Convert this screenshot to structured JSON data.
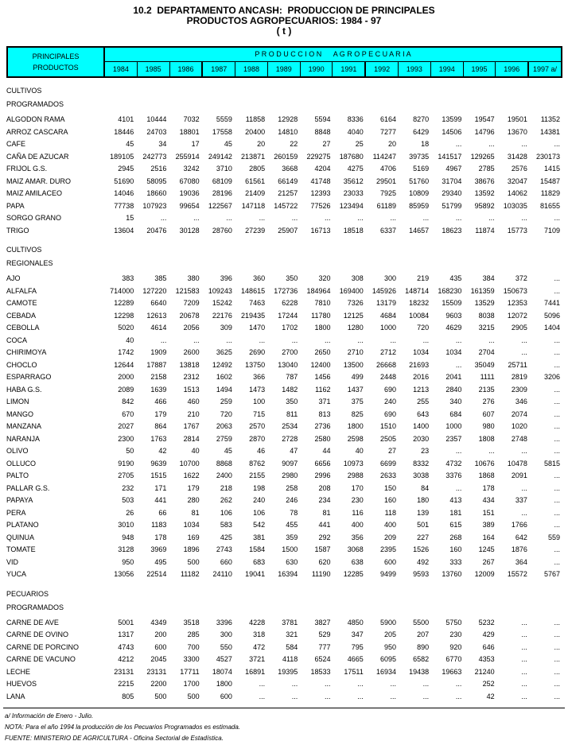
{
  "title": {
    "line1": "10.2  DEPARTAMENTO ANCASH:  PRODUCCION DE PRINCIPALES",
    "line2": "PRODUCTOS AGROPECUARIOS: 1984 - 97",
    "line3": "( t )"
  },
  "colors": {
    "header_bg": "#00FFFF",
    "border": "#000000"
  },
  "header": {
    "col1_line1": "PRINCIPALES",
    "col1_line2": "PRODUCTOS",
    "group_title": "P R O D U C C I O N      A G R O P E C U A R I A",
    "years": [
      "1984",
      "1985",
      "1986",
      "1987",
      "1988",
      "1989",
      "1990",
      "1991",
      "1992",
      "1993",
      "1994",
      "1995",
      "1996",
      "1997 a/"
    ]
  },
  "sections": [
    {
      "heading": [
        "CULTIVOS",
        "PROGRAMADOS"
      ],
      "rows": [
        {
          "label": "ALGODON RAMA",
          "values": [
            "4101",
            "10444",
            "7032",
            "5559",
            "11858",
            "12928",
            "5594",
            "8336",
            "6164",
            "8270",
            "13599",
            "19547",
            "19501",
            "11352"
          ]
        },
        {
          "label": "ARROZ CASCARA",
          "values": [
            "18446",
            "24703",
            "18801",
            "17558",
            "20400",
            "14810",
            "8848",
            "4040",
            "7277",
            "6429",
            "14506",
            "14796",
            "13670",
            "14381"
          ]
        },
        {
          "label": "CAFE",
          "values": [
            "45",
            "34",
            "17",
            "45",
            "20",
            "22",
            "27",
            "25",
            "20",
            "18",
            "...",
            "...",
            "...",
            "..."
          ]
        },
        {
          "label": "CAÑA DE AZUCAR",
          "values": [
            "189105",
            "242773",
            "255914",
            "249142",
            "213871",
            "260159",
            "229275",
            "187680",
            "114247",
            "39735",
            "141517",
            "129265",
            "31428",
            "230173"
          ]
        },
        {
          "label": "FRIJOL G.S.",
          "values": [
            "2945",
            "2516",
            "3242",
            "3710",
            "2805",
            "3668",
            "4204",
            "4275",
            "4706",
            "5169",
            "4967",
            "2785",
            "2576",
            "1415"
          ]
        },
        {
          "label": "MAIZ AMAR. DURO",
          "values": [
            "51690",
            "58095",
            "67080",
            "68109",
            "61561",
            "66149",
            "41748",
            "35612",
            "29501",
            "51760",
            "31704",
            "38676",
            "32047",
            "15487"
          ]
        },
        {
          "label": "MAIZ AMILACEO",
          "values": [
            "14046",
            "18660",
            "19036",
            "28196",
            "21409",
            "21257",
            "12393",
            "23033",
            "7925",
            "10809",
            "29340",
            "13592",
            "14062",
            "11829"
          ]
        },
        {
          "label": "PAPA",
          "values": [
            "77738",
            "107923",
            "99654",
            "122567",
            "147118",
            "145722",
            "77526",
            "123494",
            "61189",
            "85959",
            "51799",
            "95892",
            "103035",
            "81655"
          ]
        },
        {
          "label": "SORGO GRANO",
          "values": [
            "15",
            "...",
            "...",
            "...",
            "...",
            "...",
            "...",
            "...",
            "...",
            "...",
            "...",
            "...",
            "...",
            "..."
          ]
        },
        {
          "label": "TRIGO",
          "values": [
            "13604",
            "20476",
            "30128",
            "28760",
            "27239",
            "25907",
            "16713",
            "18518",
            "6337",
            "14657",
            "18623",
            "11874",
            "15773",
            "7109"
          ]
        }
      ]
    },
    {
      "heading": [
        "CULTIVOS",
        "REGIONALES"
      ],
      "rows": [
        {
          "label": "AJO",
          "values": [
            "383",
            "385",
            "380",
            "396",
            "360",
            "350",
            "320",
            "308",
            "300",
            "219",
            "435",
            "384",
            "372",
            "..."
          ]
        },
        {
          "label": "ALFALFA",
          "values": [
            "714000",
            "127220",
            "121583",
            "109243",
            "148615",
            "172736",
            "184964",
            "169400",
            "145926",
            "148714",
            "168230",
            "161359",
            "150673",
            "..."
          ]
        },
        {
          "label": "CAMOTE",
          "values": [
            "12289",
            "6640",
            "7209",
            "15242",
            "7463",
            "6228",
            "7810",
            "7326",
            "13179",
            "18232",
            "15509",
            "13529",
            "12353",
            "7441"
          ]
        },
        {
          "label": "CEBADA",
          "values": [
            "12298",
            "12613",
            "20678",
            "22176",
            "219435",
            "17244",
            "11780",
            "12125",
            "4684",
            "10084",
            "9603",
            "8038",
            "12072",
            "5096"
          ]
        },
        {
          "label": "CEBOLLA",
          "values": [
            "5020",
            "4614",
            "2056",
            "309",
            "1470",
            "1702",
            "1800",
            "1280",
            "1000",
            "720",
            "4629",
            "3215",
            "2905",
            "1404"
          ]
        },
        {
          "label": "COCA",
          "values": [
            "40",
            "...",
            "...",
            "...",
            "...",
            "...",
            "...",
            "...",
            "...",
            "...",
            "...",
            "...",
            "...",
            "..."
          ]
        },
        {
          "label": "CHIRIMOYA",
          "values": [
            "1742",
            "1909",
            "2600",
            "3625",
            "2690",
            "2700",
            "2650",
            "2710",
            "2712",
            "1034",
            "1034",
            "2704",
            "...",
            "..."
          ]
        },
        {
          "label": "CHOCLO",
          "values": [
            "12644",
            "17887",
            "13818",
            "12492",
            "13750",
            "13040",
            "12400",
            "13500",
            "26668",
            "21693",
            "...",
            "35049",
            "25711",
            "..."
          ]
        },
        {
          "label": "ESPARRAGO",
          "values": [
            "2000",
            "2158",
            "2312",
            "1602",
            "366",
            "787",
            "1456",
            "499",
            "2448",
            "2016",
            "2041",
            "1111",
            "2819",
            "3206"
          ]
        },
        {
          "label": "HABA G.S.",
          "values": [
            "2089",
            "1639",
            "1513",
            "1494",
            "1473",
            "1482",
            "1162",
            "1437",
            "690",
            "1213",
            "2840",
            "2135",
            "2309",
            "..."
          ]
        },
        {
          "label": "LIMON",
          "values": [
            "842",
            "466",
            "460",
            "259",
            "100",
            "350",
            "371",
            "375",
            "240",
            "255",
            "340",
            "276",
            "346",
            "..."
          ]
        },
        {
          "label": "MANGO",
          "values": [
            "670",
            "179",
            "210",
            "720",
            "715",
            "811",
            "813",
            "825",
            "690",
            "643",
            "684",
            "607",
            "2074",
            "..."
          ]
        },
        {
          "label": "MANZANA",
          "values": [
            "2027",
            "864",
            "1767",
            "2063",
            "2570",
            "2534",
            "2736",
            "1800",
            "1510",
            "1400",
            "1000",
            "980",
            "1020",
            "..."
          ]
        },
        {
          "label": "NARANJA",
          "values": [
            "2300",
            "1763",
            "2814",
            "2759",
            "2870",
            "2728",
            "2580",
            "2598",
            "2505",
            "2030",
            "2357",
            "1808",
            "2748",
            "..."
          ]
        },
        {
          "label": "OLIVO",
          "values": [
            "50",
            "42",
            "40",
            "45",
            "46",
            "47",
            "44",
            "40",
            "27",
            "23",
            "...",
            "...",
            "...",
            "..."
          ]
        },
        {
          "label": "OLLUCO",
          "values": [
            "9190",
            "9639",
            "10700",
            "8868",
            "8762",
            "9097",
            "6656",
            "10973",
            "6699",
            "8332",
            "4732",
            "10676",
            "10478",
            "5815"
          ]
        },
        {
          "label": "PALTO",
          "values": [
            "2705",
            "1515",
            "1622",
            "2400",
            "2155",
            "2980",
            "2996",
            "2988",
            "2633",
            "3038",
            "3376",
            "1868",
            "2091",
            "..."
          ]
        },
        {
          "label": "PALLAR G.S.",
          "values": [
            "232",
            "171",
            "179",
            "218",
            "198",
            "258",
            "208",
            "170",
            "150",
            "84",
            "...",
            "178",
            "...",
            "..."
          ]
        },
        {
          "label": "PAPAYA",
          "values": [
            "503",
            "441",
            "280",
            "262",
            "240",
            "246",
            "234",
            "230",
            "160",
            "180",
            "413",
            "434",
            "337",
            "..."
          ]
        },
        {
          "label": "PERA",
          "values": [
            "26",
            "66",
            "81",
            "106",
            "106",
            "78",
            "81",
            "116",
            "118",
            "139",
            "181",
            "151",
            "...",
            "..."
          ]
        },
        {
          "label": "PLATANO",
          "values": [
            "3010",
            "1183",
            "1034",
            "583",
            "542",
            "455",
            "441",
            "400",
            "400",
            "501",
            "615",
            "389",
            "1766",
            "..."
          ]
        },
        {
          "label": "QUINUA",
          "values": [
            "948",
            "178",
            "169",
            "425",
            "381",
            "359",
            "292",
            "356",
            "209",
            "227",
            "268",
            "164",
            "642",
            "559"
          ]
        },
        {
          "label": "TOMATE",
          "values": [
            "3128",
            "3969",
            "1896",
            "2743",
            "1584",
            "1500",
            "1587",
            "3068",
            "2395",
            "1526",
            "160",
            "1245",
            "1876",
            "..."
          ]
        },
        {
          "label": "VID",
          "values": [
            "950",
            "495",
            "500",
            "660",
            "683",
            "630",
            "620",
            "638",
            "600",
            "492",
            "333",
            "267",
            "364",
            "..."
          ]
        },
        {
          "label": "YUCA",
          "values": [
            "13056",
            "22514",
            "11182",
            "24110",
            "19041",
            "16394",
            "11190",
            "12285",
            "9499",
            "9593",
            "13760",
            "12009",
            "15572",
            "5767"
          ]
        }
      ]
    },
    {
      "heading": [
        "PECUARIOS",
        "PROGRAMADOS"
      ],
      "rows": [
        {
          "label": "CARNE DE AVE",
          "values": [
            "5001",
            "4349",
            "3518",
            "3396",
            "4228",
            "3781",
            "3827",
            "4850",
            "5900",
            "5500",
            "5750",
            "5232",
            "...",
            "..."
          ]
        },
        {
          "label": "CARNE DE OVINO",
          "values": [
            "1317",
            "200",
            "285",
            "300",
            "318",
            "321",
            "529",
            "347",
            "205",
            "207",
            "230",
            "429",
            "...",
            "..."
          ]
        },
        {
          "label": "CARNE DE PORCINO",
          "values": [
            "4743",
            "600",
            "700",
            "550",
            "472",
            "584",
            "777",
            "795",
            "950",
            "890",
            "920",
            "646",
            "...",
            "..."
          ]
        },
        {
          "label": "CARNE DE VACUNO",
          "values": [
            "4212",
            "2045",
            "3300",
            "4527",
            "3721",
            "4118",
            "6524",
            "4665",
            "6095",
            "6582",
            "6770",
            "4353",
            "...",
            "..."
          ]
        },
        {
          "label": "LECHE",
          "values": [
            "23131",
            "23131",
            "17711",
            "18074",
            "16891",
            "19395",
            "18533",
            "17511",
            "16934",
            "19438",
            "19663",
            "21240",
            "...",
            "..."
          ]
        },
        {
          "label": "HUEVOS",
          "values": [
            "2215",
            "2200",
            "1700",
            "1800",
            "...",
            "...",
            "...",
            "...",
            "...",
            "...",
            "...",
            "252",
            "...",
            "..."
          ]
        },
        {
          "label": "LANA",
          "values": [
            "805",
            "500",
            "500",
            "600",
            "...",
            "...",
            "...",
            "...",
            "...",
            "...",
            "...",
            "42",
            "...",
            "..."
          ]
        }
      ]
    }
  ],
  "footnotes": [
    "a/ Información de Enero - Julio.",
    "NOTA: Para el año 1994 la producción de los Pecuarios Programados es estimada.",
    "FUENTE: MINISTERIO DE AGRICULTURA - Oficina Sectorial de Estadística."
  ]
}
